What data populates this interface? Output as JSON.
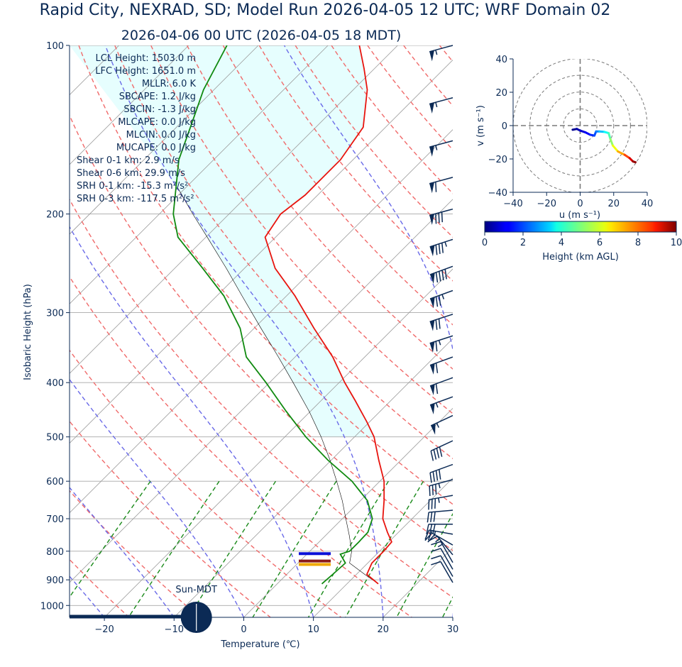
{
  "header": {
    "title": "Rapid City, NEXRAD, SD; Model Run 2026-04-05 12 UTC; WRF Domain 02",
    "subtitle": "2026-04-06 00 UTC  (2026-04-05 18 MDT)"
  },
  "indices": [
    "LCL Height: 1503.0 m",
    "LFC Height: 1651.0 m",
    "MLLR: 6.0 K",
    "SBCAPE: 1.2 J/kg",
    "SBCIN: -1.3 J/kg",
    "MLCAPE: 0.0 J/kg",
    "MLCIN: 0.0 J/kg",
    "MUCAPE: 0.0 J/kg",
    "Shear 0-1 km: 2.9 m/s",
    "Shear 0-6 km: 29.9 m/s",
    "SRH 0-1 km: -15.3 m²/s²",
    "SRH 0-3 km: -117.5 m²/s²"
  ],
  "sun_label": "Sun-MDT",
  "colors": {
    "temperature": "#e8140e",
    "dewpoint": "#108a10",
    "parcel": "#000000",
    "cape_fill": "#e6fefe",
    "dry_adiabat": "#f06a6a",
    "moist_adiabat": "#6a6ae8",
    "mixing_ratio": "#1a8a1a",
    "isotherm": "#9a9a9a",
    "wind_barb": "#0b2a55",
    "frame": "#0b2a55"
  },
  "chart_data": [
    {
      "type": "line",
      "name": "skew-T log-p",
      "xlabel": "Temperature (℃)",
      "ylabel": "Isobaric Height (hPa)",
      "xlim": [
        -25,
        30
      ],
      "ylim": [
        1050,
        100
      ],
      "y_scale": "log",
      "x_ticks": [
        "−20",
        "−10",
        "0",
        "10",
        "20",
        "30"
      ],
      "y_ticks": [
        "100",
        "200",
        "300",
        "400",
        "500",
        "600",
        "700",
        "800",
        "900",
        "1000"
      ],
      "grid": true,
      "series": [
        {
          "key": "temperature",
          "points": [
            {
              "p": 915,
              "t": 14.5
            },
            {
              "p": 880,
              "t": 11.5
            },
            {
              "p": 840,
              "t": 10.6
            },
            {
              "p": 800,
              "t": 10.6
            },
            {
              "p": 770,
              "t": 10.4
            },
            {
              "p": 740,
              "t": 8.4
            },
            {
              "p": 700,
              "t": 5.8
            },
            {
              "p": 650,
              "t": 3.4
            },
            {
              "p": 600,
              "t": 0.6
            },
            {
              "p": 550,
              "t": -3.2
            },
            {
              "p": 500,
              "t": -7.2
            },
            {
              "p": 470,
              "t": -10.4
            },
            {
              "p": 430,
              "t": -15.2
            },
            {
              "p": 400,
              "t": -19.2
            },
            {
              "p": 360,
              "t": -24.6
            },
            {
              "p": 320,
              "t": -31.4
            },
            {
              "p": 280,
              "t": -38.8
            },
            {
              "p": 250,
              "t": -45.6
            },
            {
              "p": 220,
              "t": -51.5
            },
            {
              "p": 200,
              "t": -52.6
            },
            {
              "p": 185,
              "t": -51.8
            },
            {
              "p": 160,
              "t": -51.8
            },
            {
              "p": 140,
              "t": -53.2
            },
            {
              "p": 120,
              "t": -58.0
            },
            {
              "p": 110,
              "t": -61.5
            },
            {
              "p": 100,
              "t": -65.5
            }
          ]
        },
        {
          "key": "dewpoint",
          "points": [
            {
              "p": 915,
              "t": 6.4
            },
            {
              "p": 880,
              "t": 6.6
            },
            {
              "p": 840,
              "t": 6.8
            },
            {
              "p": 810,
              "t": 4.8
            },
            {
              "p": 800,
              "t": 5.7
            },
            {
              "p": 770,
              "t": 5.7
            },
            {
              "p": 740,
              "t": 5.6
            },
            {
              "p": 700,
              "t": 4.3
            },
            {
              "p": 650,
              "t": 1.0
            },
            {
              "p": 600,
              "t": -4.0
            },
            {
              "p": 550,
              "t": -10.5
            },
            {
              "p": 500,
              "t": -17.0
            },
            {
              "p": 450,
              "t": -23.5
            },
            {
              "p": 400,
              "t": -30.5
            },
            {
              "p": 360,
              "t": -37.0
            },
            {
              "p": 320,
              "t": -42.0
            },
            {
              "p": 280,
              "t": -49.0
            },
            {
              "p": 250,
              "t": -56.0
            },
            {
              "p": 220,
              "t": -64.0
            },
            {
              "p": 200,
              "t": -68.0
            },
            {
              "p": 160,
              "t": -75.0
            },
            {
              "p": 140,
              "t": -78.0
            },
            {
              "p": 120,
              "t": -81.5
            },
            {
              "p": 100,
              "t": -84.5
            }
          ]
        },
        {
          "key": "parcel",
          "points": [
            {
              "p": 915,
              "t": 14.5
            },
            {
              "p": 880,
              "t": 11.2
            },
            {
              "p": 840,
              "t": 7.4
            },
            {
              "p": 800,
              "t": 6.0
            },
            {
              "p": 750,
              "t": 3.4
            },
            {
              "p": 700,
              "t": 0.5
            },
            {
              "p": 650,
              "t": -2.6
            },
            {
              "p": 600,
              "t": -6.2
            },
            {
              "p": 550,
              "t": -10.2
            },
            {
              "p": 500,
              "t": -14.8
            },
            {
              "p": 450,
              "t": -20.2
            },
            {
              "p": 400,
              "t": -26.6
            },
            {
              "p": 360,
              "t": -32.4
            },
            {
              "p": 320,
              "t": -39.0
            },
            {
              "p": 280,
              "t": -46.4
            },
            {
              "p": 250,
              "t": -52.6
            },
            {
              "p": 220,
              "t": -59.8
            },
            {
              "p": 200,
              "t": -65.2
            },
            {
              "p": 180,
              "t": -71.0
            }
          ]
        }
      ],
      "level_markers": [
        {
          "key": "lcl",
          "p": 808,
          "color": "#0a10d8"
        },
        {
          "key": "lfc",
          "p": 833,
          "color": "#8b1a1a"
        },
        {
          "key": "el",
          "p": 845,
          "color": "#f0a800"
        }
      ],
      "wind_barbs": [
        {
          "p": 100,
          "speed": 55,
          "dir": 255
        },
        {
          "p": 124,
          "speed": 55,
          "dir": 255
        },
        {
          "p": 148,
          "speed": 55,
          "dir": 255
        },
        {
          "p": 172,
          "speed": 60,
          "dir": 255
        },
        {
          "p": 196,
          "speed": 80,
          "dir": 255
        },
        {
          "p": 222,
          "speed": 85,
          "dir": 252
        },
        {
          "p": 248,
          "speed": 90,
          "dir": 250
        },
        {
          "p": 274,
          "speed": 75,
          "dir": 250
        },
        {
          "p": 302,
          "speed": 70,
          "dir": 252
        },
        {
          "p": 330,
          "speed": 65,
          "dir": 252
        },
        {
          "p": 360,
          "speed": 60,
          "dir": 250
        },
        {
          "p": 392,
          "speed": 60,
          "dir": 250
        },
        {
          "p": 424,
          "speed": 55,
          "dir": 250
        },
        {
          "p": 458,
          "speed": 55,
          "dir": 245
        },
        {
          "p": 508,
          "speed": 40,
          "dir": 245
        },
        {
          "p": 560,
          "speed": 40,
          "dir": 250
        },
        {
          "p": 596,
          "speed": 35,
          "dir": 255
        },
        {
          "p": 636,
          "speed": 35,
          "dir": 260
        },
        {
          "p": 676,
          "speed": 30,
          "dir": 265
        },
        {
          "p": 716,
          "speed": 30,
          "dir": 270
        },
        {
          "p": 746,
          "speed": 25,
          "dir": 280
        },
        {
          "p": 780,
          "speed": 20,
          "dir": 300
        },
        {
          "p": 812,
          "speed": 15,
          "dir": 320
        },
        {
          "p": 838,
          "speed": 15,
          "dir": 330
        },
        {
          "p": 862,
          "speed": 10,
          "dir": 330
        },
        {
          "p": 888,
          "speed": 10,
          "dir": 330
        },
        {
          "p": 910,
          "speed": 10,
          "dir": 330
        }
      ],
      "sun_indicator": {
        "t": -6.8,
        "p": 1033
      }
    },
    {
      "type": "line",
      "name": "hodograph",
      "xlabel": "u (m s⁻¹)",
      "ylabel": "v (m s⁻¹)",
      "xlim": [
        -40,
        40
      ],
      "ylim": [
        -40,
        40
      ],
      "x_ticks": [
        "−40",
        "−20",
        "0",
        "20",
        "40"
      ],
      "y_ticks": [
        "40",
        "20",
        "0",
        "−20",
        "−40"
      ],
      "rings": [
        10,
        20,
        30,
        40
      ],
      "points": [
        {
          "u": -4.5,
          "v": -2.5,
          "h": 0.0
        },
        {
          "u": -2.0,
          "v": -2.0,
          "h": 0.3
        },
        {
          "u": 0.0,
          "v": -3.0,
          "h": 0.6
        },
        {
          "u": 3.0,
          "v": -4.0,
          "h": 1.0
        },
        {
          "u": 6.0,
          "v": -5.5,
          "h": 1.4
        },
        {
          "u": 8.5,
          "v": -6.0,
          "h": 1.8
        },
        {
          "u": 9.5,
          "v": -3.5,
          "h": 2.2
        },
        {
          "u": 11.5,
          "v": -3.5,
          "h": 2.8
        },
        {
          "u": 14.5,
          "v": -3.8,
          "h": 3.5
        },
        {
          "u": 17.0,
          "v": -4.5,
          "h": 4.2
        },
        {
          "u": 18.0,
          "v": -8.0,
          "h": 4.8
        },
        {
          "u": 19.5,
          "v": -12.0,
          "h": 5.6
        },
        {
          "u": 22.5,
          "v": -15.5,
          "h": 6.6
        },
        {
          "u": 26.5,
          "v": -17.5,
          "h": 7.6
        },
        {
          "u": 29.5,
          "v": -19.5,
          "h": 8.6
        },
        {
          "u": 31.5,
          "v": -21.5,
          "h": 9.6
        },
        {
          "u": 33.0,
          "v": -22.0,
          "h": 10.0
        }
      ]
    },
    {
      "type": "heatmap",
      "name": "colorbar",
      "label": "Height (km AGL)",
      "range": [
        0,
        10
      ],
      "ticks": [
        "0",
        "2",
        "4",
        "6",
        "8",
        "10"
      ],
      "colormap": "jet"
    }
  ]
}
